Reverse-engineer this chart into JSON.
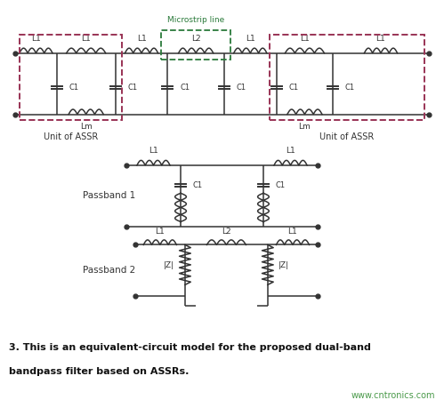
{
  "bg_color": "#f5f0e8",
  "circuit_bg": "#f0ebe0",
  "line_color": "#333333",
  "dashed_red": "#993355",
  "dashed_green": "#2a7a3a",
  "text_color": "#333333",
  "caption_color": "#111111",
  "url_color": "#4a9a4a",
  "caption_line1": "3. This is an equivalent-circuit model for the proposed dual-band",
  "caption_line2": "bandpass filter based on ASSRs.",
  "url_text": "www.cntronics.com",
  "fig_width": 4.99,
  "fig_height": 4.59,
  "dpi": 100
}
